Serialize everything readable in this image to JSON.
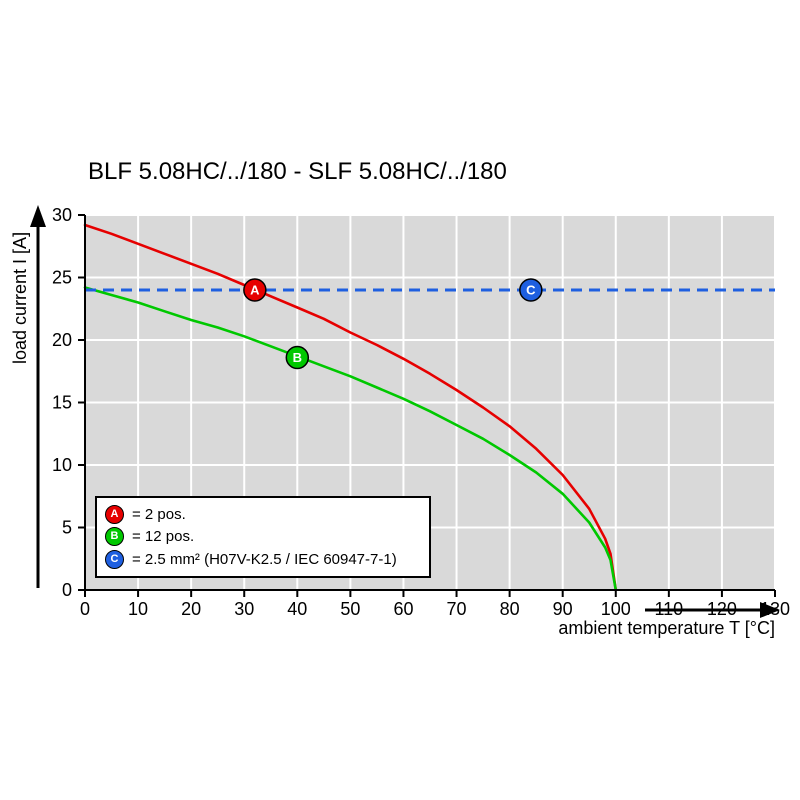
{
  "title": "BLF 5.08HC/../180 - SLF 5.08HC/../180",
  "axes": {
    "y_label": "load current I [A]",
    "x_label": "ambient temperature T [°C]",
    "x_ticks": [
      0,
      10,
      20,
      30,
      40,
      50,
      60,
      70,
      80,
      90,
      100,
      110,
      120,
      130
    ],
    "y_ticks": [
      0,
      5,
      10,
      15,
      20,
      25,
      30
    ]
  },
  "legend": {
    "items": [
      {
        "key": "A",
        "color": "#e60000",
        "text": "= 2 pos."
      },
      {
        "key": "B",
        "color": "#00c800",
        "text": "= 12 pos."
      },
      {
        "key": "C",
        "color": "#1e5fe0",
        "text": "= 2.5 mm² (H07V-K2.5 / IEC 60947-7-1)"
      }
    ]
  },
  "colors": {
    "plot_background": "#d9d9d9",
    "grid": "#ffffff",
    "axis": "#000000"
  },
  "chart_data": {
    "type": "line",
    "title": "BLF 5.08HC/../180 - SLF 5.08HC/../180",
    "xlabel": "ambient temperature T [°C]",
    "ylabel": "load current I [A]",
    "xlim": [
      0,
      130
    ],
    "ylim": [
      0,
      30
    ],
    "grid": true,
    "legend_position": "lower-left",
    "series": [
      {
        "name": "A = 2 pos.",
        "color": "#e60000",
        "style": "solid",
        "marker": {
          "x": 32,
          "y": 24,
          "label": "A"
        },
        "points": [
          [
            0,
            29.2
          ],
          [
            5,
            28.5
          ],
          [
            10,
            27.7
          ],
          [
            15,
            26.9
          ],
          [
            20,
            26.1
          ],
          [
            25,
            25.3
          ],
          [
            30,
            24.4
          ],
          [
            35,
            23.5
          ],
          [
            40,
            22.6
          ],
          [
            45,
            21.7
          ],
          [
            50,
            20.6
          ],
          [
            55,
            19.6
          ],
          [
            60,
            18.5
          ],
          [
            65,
            17.3
          ],
          [
            70,
            16.0
          ],
          [
            75,
            14.6
          ],
          [
            80,
            13.1
          ],
          [
            85,
            11.3
          ],
          [
            90,
            9.2
          ],
          [
            95,
            6.5
          ],
          [
            98,
            4.1
          ],
          [
            99,
            2.9
          ],
          [
            100,
            0
          ]
        ]
      },
      {
        "name": "B = 12 pos.",
        "color": "#00c800",
        "style": "solid",
        "marker": {
          "x": 40,
          "y": 18.6,
          "label": "B"
        },
        "points": [
          [
            0,
            24.2
          ],
          [
            5,
            23.6
          ],
          [
            10,
            23.0
          ],
          [
            15,
            22.3
          ],
          [
            20,
            21.6
          ],
          [
            25,
            21.0
          ],
          [
            30,
            20.3
          ],
          [
            35,
            19.5
          ],
          [
            40,
            18.7
          ],
          [
            45,
            17.9
          ],
          [
            50,
            17.1
          ],
          [
            55,
            16.2
          ],
          [
            60,
            15.3
          ],
          [
            65,
            14.3
          ],
          [
            70,
            13.2
          ],
          [
            75,
            12.1
          ],
          [
            80,
            10.8
          ],
          [
            85,
            9.4
          ],
          [
            90,
            7.7
          ],
          [
            95,
            5.4
          ],
          [
            98,
            3.4
          ],
          [
            99,
            2.4
          ],
          [
            100,
            0
          ]
        ]
      },
      {
        "name": "C = 2.5 mm² (H07V-K2.5 / IEC 60947-7-1)",
        "color": "#1e5fe0",
        "style": "dashed",
        "type": "hline",
        "y": 24,
        "marker": {
          "x": 84,
          "y": 24,
          "label": "C"
        }
      }
    ]
  }
}
